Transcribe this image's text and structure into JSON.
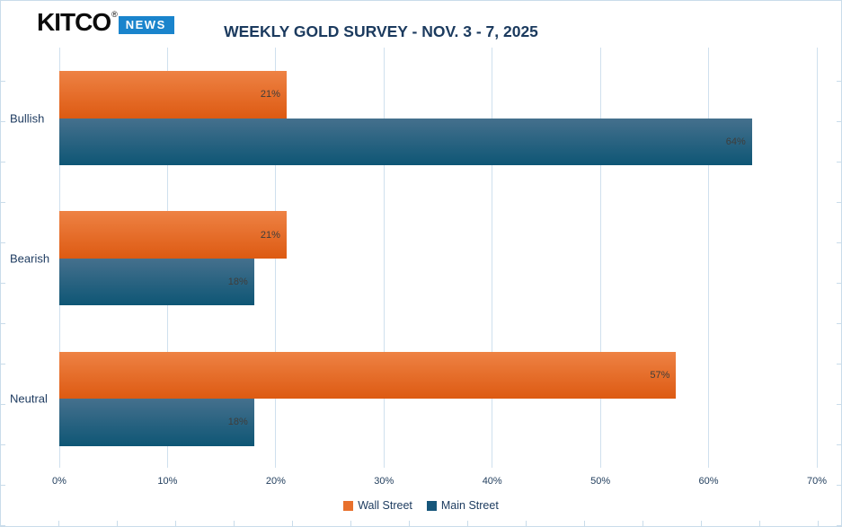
{
  "logo": {
    "brand": "KITCO",
    "reg": "®",
    "badge": "NEWS"
  },
  "title": "WEEKLY GOLD SURVEY - NOV. 3 - 7, 2025",
  "chart_data": {
    "type": "bar",
    "orientation": "horizontal",
    "title": "WEEKLY GOLD SURVEY - NOV. 3 - 7, 2025",
    "categories": [
      "Bullish",
      "Bearish",
      "Neutral"
    ],
    "series": [
      {
        "name": "Wall Street",
        "values": [
          21,
          21,
          57
        ],
        "color_top": "#ee8244",
        "color_bottom": "#dd5a12",
        "legend_color": "#e8702c"
      },
      {
        "name": "Main Street",
        "values": [
          64,
          18,
          18
        ],
        "color_top": "#45708d",
        "color_bottom": "#0e5675",
        "legend_color": "#16567a"
      }
    ],
    "value_labels": [
      [
        "21%",
        "21%",
        "57%"
      ],
      [
        "64%",
        "18%",
        "18%"
      ]
    ],
    "x_ticks": [
      "0%",
      "10%",
      "20%",
      "30%",
      "40%",
      "50%",
      "60%",
      "70%"
    ],
    "xlim": [
      0,
      70
    ],
    "xlabel": "",
    "ylabel": "",
    "grid": "vertical",
    "legend_position": "bottom-center"
  },
  "colors": {
    "background": "#ffffff",
    "frame": "#c9dcea",
    "gridline": "#cfe0ee",
    "title_text": "#1b3a5e",
    "category_text": "#1f3c61",
    "axis_text": "#24405f",
    "value_text": "#3f3d3a",
    "badge_bg": "#1a84cc",
    "badge_text": "#ffffff"
  }
}
